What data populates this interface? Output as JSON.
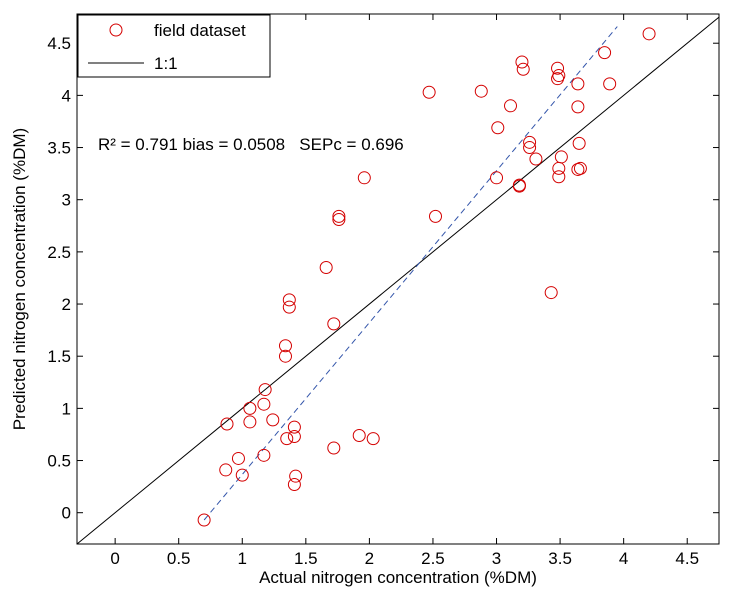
{
  "chart_data": {
    "type": "scatter",
    "xlabel": "Actual nitrogen concentration (%DM)",
    "ylabel": "Predicted nitrogen concentration (%DM)",
    "xlim": [
      -0.3,
      4.75
    ],
    "ylim": [
      -0.3,
      4.78
    ],
    "xticks": [
      0,
      0.5,
      1,
      1.5,
      2,
      2.5,
      3,
      3.5,
      4,
      4.5
    ],
    "yticks": [
      0,
      0.5,
      1,
      1.5,
      2,
      2.5,
      3,
      3.5,
      4,
      4.5
    ],
    "xtick_labels": [
      "0",
      "0.5",
      "1",
      "1.5",
      "2",
      "2.5",
      "3",
      "3.5",
      "4",
      "4.5"
    ],
    "ytick_labels": [
      "0",
      "0.5",
      "1",
      "1.5",
      "2",
      "2.5",
      "3",
      "3.5",
      "4",
      "4.5"
    ],
    "grid": false,
    "legend_position": "top-left",
    "annotation": "R² = 0.791 bias = 0.0508   SEPc = 0.696",
    "colors": {
      "points": "#d40000",
      "one_to_one": "#000000",
      "regression": "#3355aa"
    },
    "series": [
      {
        "name": "field dataset",
        "marker": "open-circle",
        "color": "#d40000",
        "points": [
          [
            0.7,
            -0.07
          ],
          [
            0.87,
            0.41
          ],
          [
            0.88,
            0.85
          ],
          [
            0.97,
            0.52
          ],
          [
            1.0,
            0.36
          ],
          [
            1.06,
            1.0
          ],
          [
            1.06,
            0.87
          ],
          [
            1.17,
            1.04
          ],
          [
            1.18,
            1.18
          ],
          [
            1.17,
            0.55
          ],
          [
            1.24,
            0.89
          ],
          [
            1.34,
            1.6
          ],
          [
            1.34,
            1.5
          ],
          [
            1.35,
            0.71
          ],
          [
            1.37,
            1.97
          ],
          [
            1.37,
            2.04
          ],
          [
            1.41,
            0.82
          ],
          [
            1.41,
            0.73
          ],
          [
            1.42,
            0.35
          ],
          [
            1.41,
            0.27
          ],
          [
            1.66,
            2.35
          ],
          [
            1.72,
            1.81
          ],
          [
            1.72,
            0.62
          ],
          [
            1.76,
            2.84
          ],
          [
            1.76,
            2.81
          ],
          [
            1.92,
            0.74
          ],
          [
            1.96,
            3.21
          ],
          [
            2.03,
            0.71
          ],
          [
            2.47,
            4.03
          ],
          [
            2.52,
            2.84
          ],
          [
            2.88,
            4.04
          ],
          [
            3.0,
            3.21
          ],
          [
            3.01,
            3.69
          ],
          [
            3.11,
            3.9
          ],
          [
            3.18,
            3.13
          ],
          [
            3.18,
            3.14
          ],
          [
            3.2,
            4.32
          ],
          [
            3.21,
            4.25
          ],
          [
            3.26,
            3.5
          ],
          [
            3.26,
            3.55
          ],
          [
            3.31,
            3.39
          ],
          [
            3.43,
            2.11
          ],
          [
            3.48,
            4.26
          ],
          [
            3.48,
            4.16
          ],
          [
            3.49,
            4.19
          ],
          [
            3.49,
            3.3
          ],
          [
            3.49,
            3.22
          ],
          [
            3.51,
            3.41
          ],
          [
            3.64,
            4.11
          ],
          [
            3.64,
            3.89
          ],
          [
            3.64,
            3.29
          ],
          [
            3.65,
            3.54
          ],
          [
            3.66,
            3.3
          ],
          [
            3.85,
            4.41
          ],
          [
            3.89,
            4.11
          ],
          [
            4.2,
            4.59
          ]
        ]
      },
      {
        "name": "1:1",
        "type": "line",
        "x": [
          -0.3,
          4.75
        ],
        "y": [
          -0.3,
          4.75
        ]
      },
      {
        "type": "line",
        "style": "dashed",
        "x": [
          0.7,
          3.95
        ],
        "y": [
          -0.07,
          4.66
        ]
      }
    ]
  }
}
